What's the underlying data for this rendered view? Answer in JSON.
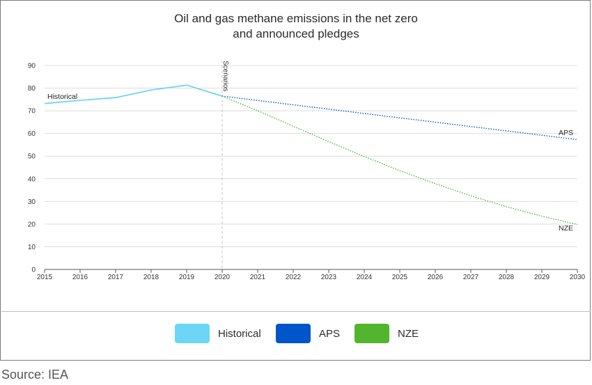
{
  "colors": {
    "historical": "#6dd5f5",
    "aps": "#0055c8",
    "nze": "#53b52d",
    "grid": "#dcdcdc",
    "axis": "#555555",
    "scenario_line": "#c4c4c4"
  },
  "title_line1": "Oil and gas methane emissions in the net zero",
  "title_line2": "and announced pledges",
  "source": "Source: IEA",
  "legend": [
    {
      "label": "Historical",
      "color": "#6dd5f5"
    },
    {
      "label": "APS",
      "color": "#0055c8"
    },
    {
      "label": "NZE",
      "color": "#53b52d"
    }
  ],
  "chart_data": {
    "type": "line",
    "title": "Oil and gas methane emissions in the net zero and announced pledges",
    "xlabel": "",
    "ylabel": "",
    "xlim": [
      2015,
      2030
    ],
    "ylim": [
      0,
      90
    ],
    "x_ticks": [
      2015,
      2016,
      2017,
      2018,
      2019,
      2020,
      2021,
      2022,
      2023,
      2024,
      2025,
      2026,
      2027,
      2028,
      2029,
      2030
    ],
    "y_ticks": [
      0,
      10,
      20,
      30,
      40,
      50,
      60,
      70,
      80,
      90
    ],
    "grid": "horizontal",
    "scenario_marker": {
      "x": 2020,
      "label": "Scenarios"
    },
    "series": [
      {
        "name": "Historical",
        "style": "solid",
        "color": "#6dd5f5",
        "points": [
          [
            2015,
            73.2
          ],
          [
            2016,
            74.6
          ],
          [
            2017,
            75.8
          ],
          [
            2018,
            79.2
          ],
          [
            2019,
            81.3
          ],
          [
            2020,
            76.5
          ]
        ]
      },
      {
        "name": "APS",
        "style": "dotted",
        "color": "#0055c8",
        "points": [
          [
            2020,
            76.5
          ],
          [
            2030,
            57.3
          ]
        ]
      },
      {
        "name": "NZE",
        "style": "dotted",
        "color": "#53b52d",
        "points": [
          [
            2020,
            76.5
          ],
          [
            2021,
            70.0
          ],
          [
            2022,
            63.2
          ],
          [
            2023,
            56.4
          ],
          [
            2024,
            49.8
          ],
          [
            2025,
            43.6
          ],
          [
            2026,
            37.8
          ],
          [
            2027,
            32.5
          ],
          [
            2028,
            27.7
          ],
          [
            2029,
            23.5
          ],
          [
            2030,
            19.8
          ]
        ]
      }
    ],
    "annotations": [
      {
        "text": "Historical",
        "series": "Historical"
      },
      {
        "text": "APS",
        "series": "APS"
      },
      {
        "text": "NZE",
        "series": "NZE"
      }
    ]
  }
}
